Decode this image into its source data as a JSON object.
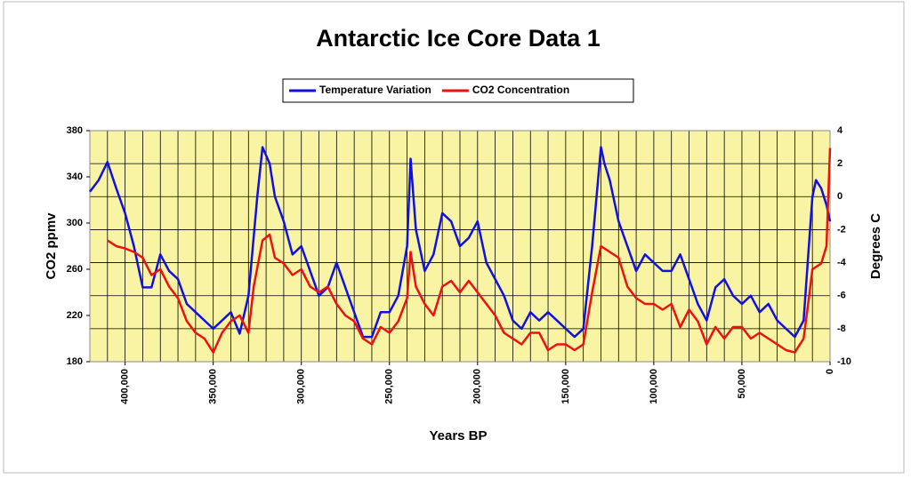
{
  "chart_data": {
    "type": "line",
    "title": "Antarctic Ice Core Data 1",
    "x_label": "Years BP",
    "y_label": "CO2 ppmv",
    "y2_label": "Degrees C",
    "xlim": [
      420000,
      0
    ],
    "ylim": [
      180,
      380
    ],
    "y2lim": [
      -10,
      4
    ],
    "xticks": [
      {
        "value": 400000,
        "label": "400,000"
      },
      {
        "value": 350000,
        "label": "350,000"
      },
      {
        "value": 300000,
        "label": "300,000"
      },
      {
        "value": 250000,
        "label": "250,000"
      },
      {
        "value": 200000,
        "label": "200,000"
      },
      {
        "value": 150000,
        "label": "150,000"
      },
      {
        "value": 100000,
        "label": "100,000"
      },
      {
        "value": 50000,
        "label": "50,000"
      },
      0
    ],
    "xminorticks": [
      410000,
      400000,
      390000,
      380000,
      370000,
      360000,
      350000,
      340000,
      330000,
      320000,
      310000,
      300000,
      290000,
      280000,
      270000,
      260000,
      250000,
      240000,
      230000,
      220000,
      210000,
      200000,
      190000,
      180000,
      170000,
      160000,
      150000,
      140000,
      130000,
      120000,
      110000,
      100000,
      90000,
      80000,
      70000,
      60000,
      50000,
      40000,
      30000,
      20000,
      10000
    ],
    "yticks": [
      180,
      220,
      260,
      300,
      340,
      380
    ],
    "y2ticks": [
      -10,
      -8,
      -6,
      -4,
      -2,
      0,
      2,
      4
    ],
    "grid": true,
    "plot_background": "#f8f4a4",
    "legend": "top",
    "series": [
      {
        "name": "Temperature Variation",
        "color": "#1010e0",
        "axis": "y2",
        "x": [
          420000,
          415000,
          410000,
          405000,
          400000,
          395000,
          390000,
          385000,
          380000,
          375000,
          370000,
          365000,
          360000,
          355000,
          350000,
          345000,
          340000,
          335000,
          330000,
          325000,
          322000,
          318000,
          315000,
          310000,
          305000,
          300000,
          295000,
          290000,
          285000,
          280000,
          275000,
          270000,
          265000,
          260000,
          255000,
          250000,
          245000,
          240000,
          238000,
          235000,
          230000,
          225000,
          220000,
          215000,
          210000,
          205000,
          200000,
          195000,
          190000,
          185000,
          180000,
          175000,
          170000,
          165000,
          160000,
          155000,
          150000,
          145000,
          140000,
          135000,
          130000,
          128000,
          125000,
          120000,
          115000,
          110000,
          105000,
          100000,
          95000,
          90000,
          85000,
          80000,
          75000,
          70000,
          65000,
          60000,
          55000,
          50000,
          45000,
          40000,
          35000,
          30000,
          25000,
          20000,
          15000,
          12000,
          10000,
          8000,
          5000,
          2000,
          0
        ],
        "values": [
          0.3,
          1.0,
          2.1,
          0.5,
          -1,
          -3,
          -5.5,
          -5.5,
          -3.5,
          -4.5,
          -5,
          -6.5,
          -7,
          -7.5,
          -8,
          -7.5,
          -7,
          -8.3,
          -6,
          0,
          3,
          2,
          0,
          -1.5,
          -3.5,
          -3,
          -4.5,
          -6,
          -5.5,
          -4,
          -5.5,
          -7,
          -8.5,
          -8.5,
          -7,
          -7,
          -6,
          -3,
          2.3,
          -2,
          -4.5,
          -3.5,
          -1,
          -1.5,
          -3,
          -2.5,
          -1.5,
          -4,
          -5,
          -6,
          -7.5,
          -8,
          -7,
          -7.5,
          -7,
          -7.5,
          -8,
          -8.5,
          -8,
          -3,
          3,
          2,
          1,
          -1.5,
          -3,
          -4.5,
          -3.5,
          -4,
          -4.5,
          -4.5,
          -3.5,
          -5,
          -6.5,
          -7.5,
          -5.5,
          -5,
          -6,
          -6.5,
          -6,
          -7,
          -6.5,
          -7.5,
          -8,
          -8.5,
          -7.5,
          -3,
          0,
          1,
          0.5,
          -0.5,
          -1.5
        ]
      },
      {
        "name": "CO2 Concentration",
        "color": "#ee1111",
        "x": [
          410000,
          405000,
          400000,
          395000,
          390000,
          385000,
          380000,
          375000,
          370000,
          365000,
          360000,
          355000,
          350000,
          345000,
          340000,
          335000,
          330000,
          327000,
          322000,
          318000,
          315000,
          310000,
          305000,
          300000,
          295000,
          290000,
          285000,
          280000,
          275000,
          270000,
          265000,
          260000,
          255000,
          250000,
          245000,
          240000,
          238000,
          235000,
          230000,
          225000,
          220000,
          215000,
          210000,
          205000,
          200000,
          195000,
          190000,
          185000,
          180000,
          175000,
          170000,
          165000,
          160000,
          155000,
          150000,
          145000,
          140000,
          135000,
          130000,
          125000,
          120000,
          115000,
          110000,
          105000,
          100000,
          95000,
          90000,
          85000,
          80000,
          75000,
          70000,
          65000,
          60000,
          55000,
          50000,
          45000,
          40000,
          35000,
          30000,
          25000,
          20000,
          15000,
          12000,
          10000,
          5000,
          2000,
          0
        ],
        "values": [
          285,
          280,
          278,
          275,
          270,
          255,
          260,
          245,
          235,
          215,
          205,
          200,
          188,
          205,
          215,
          220,
          205,
          245,
          285,
          290,
          270,
          265,
          255,
          260,
          245,
          240,
          245,
          230,
          220,
          215,
          200,
          195,
          210,
          205,
          215,
          235,
          275,
          245,
          230,
          220,
          245,
          250,
          240,
          250,
          240,
          230,
          220,
          205,
          200,
          195,
          205,
          205,
          190,
          195,
          195,
          190,
          195,
          240,
          280,
          275,
          270,
          245,
          235,
          230,
          230,
          225,
          230,
          210,
          225,
          215,
          195,
          210,
          200,
          210,
          210,
          200,
          205,
          200,
          195,
          190,
          188,
          200,
          235,
          260,
          265,
          280,
          365
        ]
      }
    ]
  }
}
